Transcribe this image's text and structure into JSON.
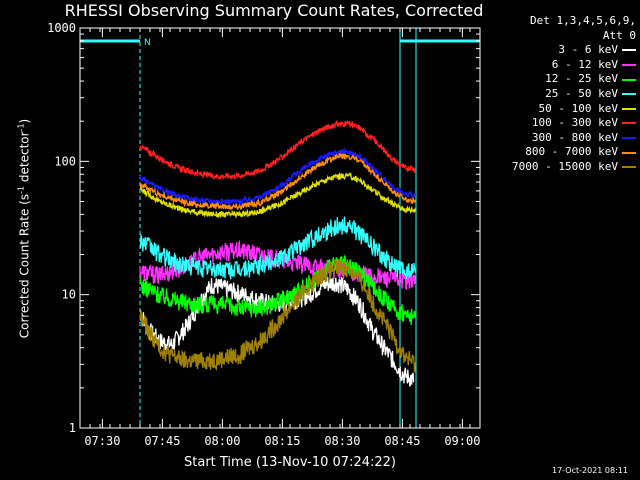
{
  "chart_data": {
    "type": "line",
    "title": "RHESSI Observing Summary Count Rates, Corrected",
    "xlabel": "Start Time (13-Nov-10 07:24:22)",
    "ylabel_main": "Corrected Count Rate (s",
    "ylabel_sup1": "-1",
    "ylabel_mid": " detector",
    "ylabel_sup2": "-1",
    "ylabel_end": ")",
    "yscale": "log",
    "ylim": [
      1,
      1000
    ],
    "xlim_minutes": [
      0,
      100
    ],
    "x_ticks": [
      {
        "minute": 5.6,
        "label": "07:30"
      },
      {
        "minute": 20.6,
        "label": "07:45"
      },
      {
        "minute": 35.6,
        "label": "08:00"
      },
      {
        "minute": 50.6,
        "label": "08:15"
      },
      {
        "minute": 65.6,
        "label": "08:30"
      },
      {
        "minute": 80.6,
        "label": "08:45"
      },
      {
        "minute": 95.6,
        "label": "09:00"
      }
    ],
    "y_ticks": [
      {
        "value": 1,
        "label": "1"
      },
      {
        "value": 10,
        "label": "10"
      },
      {
        "value": 100,
        "label": "100"
      },
      {
        "value": 1000,
        "label": "1000"
      }
    ],
    "legend_header": [
      "Det 1,3,4,5,6,9,",
      "Att 0"
    ],
    "series": [
      {
        "name": "3 - 6 keV",
        "color": "#ffffff",
        "x": [
          15,
          17,
          20,
          23,
          27,
          30,
          33,
          37,
          41,
          45,
          49,
          53,
          57,
          61,
          64,
          67,
          70,
          73,
          76,
          79,
          81,
          83.5
        ],
        "y": [
          7.5,
          5.5,
          4.5,
          4.2,
          6,
          9,
          12,
          11,
          10,
          9,
          8.5,
          9,
          10,
          12,
          12.5,
          11,
          8.5,
          5.5,
          4,
          3,
          2.5,
          2.3
        ]
      },
      {
        "name": "6 - 12 keV",
        "color": "#ff30ff",
        "x": [
          15,
          20,
          25,
          30,
          35,
          40,
          45,
          50,
          55,
          60,
          65,
          70,
          75,
          80,
          84
        ],
        "y": [
          15,
          14,
          16,
          19,
          21,
          21.5,
          20,
          18,
          17,
          16,
          15.5,
          14.5,
          13.5,
          13,
          13
        ]
      },
      {
        "name": "12 - 25 keV",
        "color": "#00ff00",
        "x": [
          15,
          20,
          25,
          30,
          35,
          40,
          45,
          50,
          55,
          60,
          63,
          66,
          70,
          74,
          78,
          82,
          84
        ],
        "y": [
          12,
          10,
          9,
          8.5,
          8.5,
          8,
          8,
          9,
          11,
          14,
          16.5,
          17,
          15,
          11,
          8,
          7,
          6.5
        ]
      },
      {
        "name": "25 - 50 keV",
        "color": "#30ffff",
        "x": [
          15,
          20,
          25,
          30,
          35,
          40,
          45,
          50,
          55,
          60,
          64,
          67,
          70,
          74,
          78,
          81,
          84
        ],
        "y": [
          26,
          20,
          17,
          16,
          15.5,
          15.5,
          16.5,
          19,
          23,
          29,
          33,
          33.5,
          29,
          22,
          17,
          15,
          15
        ]
      },
      {
        "name": "50 - 100 keV",
        "color": "#e0e000",
        "x": [
          15,
          20,
          25,
          30,
          35,
          40,
          45,
          50,
          55,
          60,
          64,
          67,
          70,
          74,
          78,
          81,
          84
        ],
        "y": [
          62,
          50,
          44,
          41,
          40,
          40,
          42,
          48,
          58,
          70,
          77,
          78,
          72,
          58,
          48,
          44,
          43
        ]
      },
      {
        "name": "100 - 300 keV",
        "color": "#ff2020",
        "x": [
          15,
          20,
          25,
          30,
          35,
          40,
          45,
          50,
          55,
          60,
          64,
          67,
          70,
          74,
          78,
          81,
          84
        ],
        "y": [
          130,
          105,
          88,
          80,
          77,
          78,
          85,
          105,
          138,
          172,
          190,
          192,
          178,
          140,
          105,
          90,
          88
        ]
      },
      {
        "name": "300 - 800 keV",
        "color": "#1a1aff",
        "x": [
          15,
          20,
          25,
          30,
          35,
          40,
          45,
          50,
          55,
          60,
          64,
          67,
          70,
          74,
          78,
          81,
          84
        ],
        "y": [
          75,
          62,
          54,
          51,
          50,
          50,
          54,
          65,
          85,
          105,
          117,
          118,
          108,
          85,
          65,
          57,
          55
        ]
      },
      {
        "name": "800 - 7000 keV",
        "color": "#ff8c10",
        "x": [
          15,
          20,
          25,
          30,
          35,
          40,
          45,
          50,
          55,
          60,
          64,
          67,
          70,
          74,
          78,
          81,
          84
        ],
        "y": [
          68,
          56,
          50,
          47,
          46,
          46,
          49,
          58,
          76,
          95,
          108,
          110,
          100,
          78,
          60,
          52,
          50
        ]
      },
      {
        "name": "7000 - 15000 keV",
        "color": "#a08000",
        "x": [
          15,
          17,
          20,
          23,
          26,
          30,
          35,
          40,
          45,
          50,
          55,
          60,
          64,
          67,
          70,
          74,
          78,
          81,
          84
        ],
        "y": [
          7,
          5.5,
          4,
          3.5,
          3.2,
          3.2,
          3.3,
          3.6,
          4.5,
          6.5,
          10,
          14,
          16,
          16,
          13,
          8,
          5,
          3.5,
          3
        ]
      }
    ],
    "attenuator_bars_minutes": [
      [
        0,
        15
      ],
      [
        80,
        100
      ]
    ],
    "night_lines_minutes": [
      15,
      80,
      84,
      100
    ],
    "night_label": "N",
    "grid": false
  },
  "footer_stamp": "17-Oct-2021 08:11"
}
